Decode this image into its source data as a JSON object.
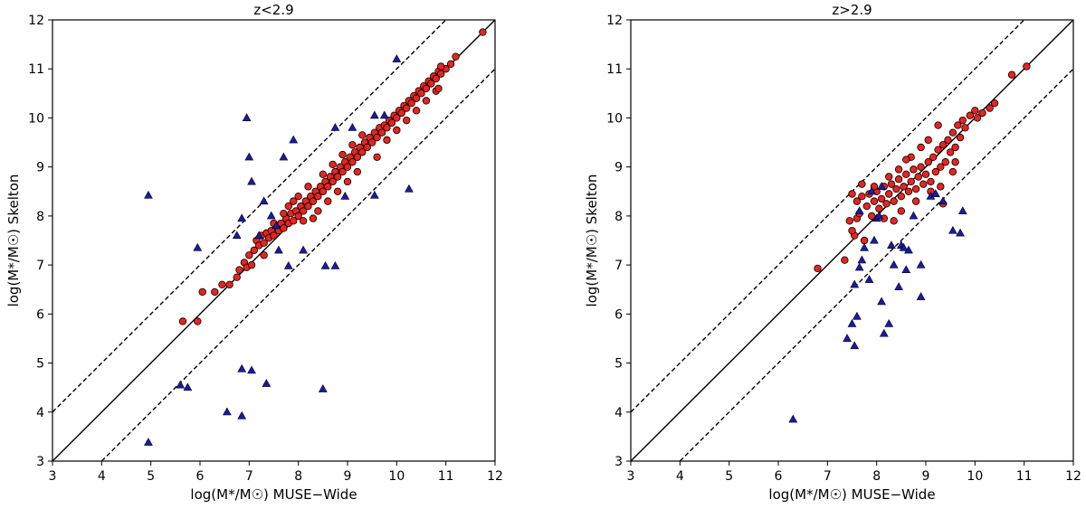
{
  "chart_data": [
    {
      "type": "scatter",
      "title": "z<2.9",
      "xlabel": "log(M*/M☉) MUSE−Wide",
      "ylabel": "log(M*/M☉) Skelton",
      "xlim": [
        3,
        12
      ],
      "ylim": [
        3,
        12
      ],
      "xticks": [
        "3",
        "4",
        "5",
        "6",
        "7",
        "8",
        "9",
        "10",
        "11",
        "12"
      ],
      "yticks": [
        "3",
        "4",
        "5",
        "6",
        "7",
        "8",
        "9",
        "10",
        "11",
        "12"
      ],
      "lines": {
        "one_to_one": true,
        "offset": 1,
        "dashed": true
      },
      "series": [
        {
          "marker": "circle",
          "color": "#e8241f",
          "points": [
            [
              5.65,
              5.85
            ],
            [
              5.95,
              5.85
            ],
            [
              6.05,
              6.45
            ],
            [
              6.3,
              6.45
            ],
            [
              6.45,
              6.6
            ],
            [
              6.6,
              6.6
            ],
            [
              6.75,
              6.75
            ],
            [
              6.8,
              6.9
            ],
            [
              6.9,
              7.05
            ],
            [
              6.95,
              6.95
            ],
            [
              7.0,
              7.2
            ],
            [
              7.05,
              7.0
            ],
            [
              7.1,
              7.3
            ],
            [
              7.15,
              7.5
            ],
            [
              7.2,
              7.4
            ],
            [
              7.25,
              7.6
            ],
            [
              7.3,
              7.45
            ],
            [
              7.35,
              7.65
            ],
            [
              7.4,
              7.55
            ],
            [
              7.45,
              7.7
            ],
            [
              7.5,
              7.6
            ],
            [
              7.55,
              7.8
            ],
            [
              7.6,
              7.7
            ],
            [
              7.65,
              7.85
            ],
            [
              7.7,
              7.75
            ],
            [
              7.75,
              7.95
            ],
            [
              7.8,
              7.85
            ],
            [
              7.85,
              8.05
            ],
            [
              7.9,
              7.9
            ],
            [
              7.95,
              8.1
            ],
            [
              8.0,
              8.0
            ],
            [
              8.05,
              8.2
            ],
            [
              8.1,
              8.1
            ],
            [
              8.15,
              8.3
            ],
            [
              8.2,
              8.2
            ],
            [
              8.25,
              8.4
            ],
            [
              8.3,
              8.3
            ],
            [
              8.35,
              8.5
            ],
            [
              8.4,
              8.4
            ],
            [
              8.45,
              8.6
            ],
            [
              8.5,
              8.5
            ],
            [
              8.55,
              8.7
            ],
            [
              8.6,
              8.6
            ],
            [
              8.65,
              8.8
            ],
            [
              8.7,
              8.7
            ],
            [
              8.75,
              8.9
            ],
            [
              8.8,
              8.8
            ],
            [
              8.85,
              9.0
            ],
            [
              8.9,
              8.9
            ],
            [
              8.95,
              9.1
            ],
            [
              9.0,
              9.0
            ],
            [
              9.05,
              9.2
            ],
            [
              9.1,
              9.1
            ],
            [
              9.15,
              9.3
            ],
            [
              9.2,
              9.2
            ],
            [
              9.25,
              9.4
            ],
            [
              9.3,
              9.3
            ],
            [
              9.35,
              9.5
            ],
            [
              9.4,
              9.4
            ],
            [
              9.45,
              9.6
            ],
            [
              9.5,
              9.5
            ],
            [
              9.55,
              9.7
            ],
            [
              9.6,
              9.6
            ],
            [
              9.65,
              9.8
            ],
            [
              9.7,
              9.7
            ],
            [
              9.75,
              9.85
            ],
            [
              9.8,
              9.8
            ],
            [
              9.85,
              9.95
            ],
            [
              9.9,
              9.9
            ],
            [
              9.95,
              10.05
            ],
            [
              10.0,
              10.0
            ],
            [
              10.05,
              10.15
            ],
            [
              10.1,
              10.1
            ],
            [
              10.15,
              10.25
            ],
            [
              10.2,
              10.2
            ],
            [
              10.25,
              10.35
            ],
            [
              10.3,
              10.3
            ],
            [
              10.35,
              10.45
            ],
            [
              10.4,
              10.4
            ],
            [
              10.45,
              10.55
            ],
            [
              10.5,
              10.5
            ],
            [
              10.55,
              10.65
            ],
            [
              10.6,
              10.6
            ],
            [
              10.65,
              10.75
            ],
            [
              10.7,
              10.7
            ],
            [
              10.75,
              10.85
            ],
            [
              10.8,
              10.8
            ],
            [
              10.85,
              10.95
            ],
            [
              10.9,
              10.9
            ],
            [
              11.0,
              11.0
            ],
            [
              11.1,
              11.1
            ],
            [
              11.2,
              11.25
            ],
            [
              11.75,
              11.75
            ],
            [
              7.8,
              8.2
            ],
            [
              8.0,
              8.4
            ],
            [
              8.2,
              8.6
            ],
            [
              8.4,
              8.1
            ],
            [
              8.6,
              8.3
            ],
            [
              8.8,
              8.5
            ],
            [
              9.0,
              8.7
            ],
            [
              9.2,
              8.9
            ],
            [
              9.6,
              9.2
            ],
            [
              7.9,
              8.3
            ],
            [
              8.1,
              7.9
            ],
            [
              8.3,
              7.95
            ],
            [
              7.7,
              8.05
            ],
            [
              7.5,
              7.85
            ],
            [
              7.3,
              7.2
            ],
            [
              9.8,
              9.55
            ],
            [
              10.2,
              9.95
            ],
            [
              10.4,
              10.15
            ],
            [
              10.6,
              10.35
            ],
            [
              10.8,
              10.55
            ],
            [
              10.0,
              9.75
            ],
            [
              8.9,
              9.25
            ],
            [
              9.1,
              9.45
            ],
            [
              9.3,
              9.65
            ],
            [
              8.7,
              9.05
            ],
            [
              8.5,
              8.85
            ],
            [
              10.9,
              11.05
            ],
            [
              10.85,
              10.6
            ]
          ]
        },
        {
          "marker": "triangle",
          "color": "#1a1aa8",
          "points": [
            [
              4.95,
              3.38
            ],
            [
              4.95,
              8.42
            ],
            [
              5.6,
              4.55
            ],
            [
              5.75,
              4.5
            ],
            [
              5.95,
              7.35
            ],
            [
              6.55,
              4.0
            ],
            [
              6.75,
              7.6
            ],
            [
              6.85,
              4.88
            ],
            [
              6.85,
              3.92
            ],
            [
              6.85,
              7.95
            ],
            [
              6.95,
              10.0
            ],
            [
              7.0,
              9.2
            ],
            [
              7.05,
              4.85
            ],
            [
              7.05,
              8.7
            ],
            [
              7.2,
              7.6
            ],
            [
              7.3,
              8.3
            ],
            [
              7.35,
              4.58
            ],
            [
              7.45,
              8.0
            ],
            [
              7.55,
              7.8
            ],
            [
              7.6,
              7.3
            ],
            [
              7.7,
              9.2
            ],
            [
              7.8,
              6.98
            ],
            [
              7.9,
              9.55
            ],
            [
              8.1,
              7.3
            ],
            [
              8.55,
              6.98
            ],
            [
              8.75,
              6.98
            ],
            [
              8.5,
              4.47
            ],
            [
              8.75,
              9.8
            ],
            [
              8.95,
              8.4
            ],
            [
              9.1,
              9.8
            ],
            [
              9.55,
              8.42
            ],
            [
              10.0,
              11.2
            ],
            [
              10.25,
              8.55
            ],
            [
              9.55,
              10.05
            ],
            [
              9.75,
              10.05
            ]
          ]
        }
      ]
    },
    {
      "type": "scatter",
      "title": "z>2.9",
      "xlabel": "log(M*/M☉) MUSE−Wide",
      "ylabel": "log(M*/M☉) Skelton",
      "xlim": [
        3,
        12
      ],
      "ylim": [
        3,
        12
      ],
      "xticks": [
        "3",
        "4",
        "5",
        "6",
        "7",
        "8",
        "9",
        "10",
        "11",
        "12"
      ],
      "yticks": [
        "3",
        "4",
        "5",
        "6",
        "7",
        "8",
        "9",
        "10",
        "11",
        "12"
      ],
      "lines": {
        "one_to_one": true,
        "offset": 1,
        "dashed": true
      },
      "series": [
        {
          "marker": "circle",
          "color": "#e8241f",
          "points": [
            [
              6.8,
              6.93
            ],
            [
              7.35,
              7.1
            ],
            [
              7.45,
              7.9
            ],
            [
              7.5,
              8.45
            ],
            [
              7.55,
              7.6
            ],
            [
              7.6,
              7.95
            ],
            [
              7.65,
              8.05
            ],
            [
              7.7,
              8.4
            ],
            [
              7.75,
              7.5
            ],
            [
              7.8,
              8.2
            ],
            [
              7.85,
              8.45
            ],
            [
              7.9,
              8.0
            ],
            [
              7.95,
              8.3
            ],
            [
              8.0,
              8.5
            ],
            [
              8.05,
              8.15
            ],
            [
              8.1,
              8.35
            ],
            [
              8.15,
              8.6
            ],
            [
              8.2,
              8.25
            ],
            [
              8.25,
              8.45
            ],
            [
              8.3,
              8.65
            ],
            [
              8.35,
              8.3
            ],
            [
              8.4,
              8.55
            ],
            [
              8.45,
              8.75
            ],
            [
              8.5,
              8.4
            ],
            [
              8.55,
              8.6
            ],
            [
              8.6,
              8.85
            ],
            [
              8.65,
              8.5
            ],
            [
              8.7,
              8.7
            ],
            [
              8.75,
              8.95
            ],
            [
              8.8,
              8.55
            ],
            [
              8.85,
              8.8
            ],
            [
              8.9,
              9.0
            ],
            [
              8.95,
              8.65
            ],
            [
              9.0,
              8.85
            ],
            [
              9.05,
              9.1
            ],
            [
              9.1,
              8.7
            ],
            [
              9.15,
              9.2
            ],
            [
              9.2,
              8.9
            ],
            [
              9.25,
              9.35
            ],
            [
              9.3,
              9.0
            ],
            [
              9.35,
              9.45
            ],
            [
              9.4,
              9.1
            ],
            [
              9.45,
              9.55
            ],
            [
              9.5,
              9.3
            ],
            [
              9.55,
              9.7
            ],
            [
              9.6,
              9.4
            ],
            [
              9.65,
              9.85
            ],
            [
              9.7,
              9.6
            ],
            [
              9.75,
              9.95
            ],
            [
              9.8,
              9.8
            ],
            [
              9.9,
              10.05
            ],
            [
              10.0,
              10.15
            ],
            [
              10.05,
              10.0
            ],
            [
              10.15,
              10.1
            ],
            [
              10.3,
              10.2
            ],
            [
              10.4,
              10.3
            ],
            [
              10.75,
              10.88
            ],
            [
              11.05,
              11.05
            ],
            [
              8.7,
              9.2
            ],
            [
              9.05,
              9.55
            ],
            [
              9.25,
              9.85
            ],
            [
              8.9,
              9.4
            ],
            [
              7.95,
              8.6
            ],
            [
              8.25,
              8.8
            ],
            [
              8.5,
              8.1
            ],
            [
              8.8,
              8.3
            ],
            [
              9.1,
              8.5
            ],
            [
              9.3,
              8.6
            ],
            [
              9.55,
              8.9
            ],
            [
              9.35,
              8.25
            ],
            [
              9.6,
              9.1
            ],
            [
              7.5,
              7.7
            ],
            [
              8.35,
              7.9
            ],
            [
              8.15,
              7.95
            ],
            [
              7.7,
              8.65
            ],
            [
              7.6,
              8.3
            ],
            [
              8.6,
              9.15
            ],
            [
              8.45,
              8.95
            ]
          ]
        },
        {
          "marker": "triangle",
          "color": "#1a1aa8",
          "points": [
            [
              6.3,
              3.85
            ],
            [
              7.4,
              5.5
            ],
            [
              7.5,
              5.8
            ],
            [
              7.55,
              5.35
            ],
            [
              7.6,
              5.95
            ],
            [
              7.55,
              6.6
            ],
            [
              7.65,
              6.95
            ],
            [
              7.65,
              8.1
            ],
            [
              7.7,
              7.1
            ],
            [
              7.75,
              7.35
            ],
            [
              7.85,
              6.7
            ],
            [
              7.9,
              8.5
            ],
            [
              7.95,
              7.5
            ],
            [
              8.0,
              7.95
            ],
            [
              8.05,
              8.0
            ],
            [
              8.1,
              6.25
            ],
            [
              8.15,
              5.6
            ],
            [
              8.25,
              5.8
            ],
            [
              8.3,
              7.4
            ],
            [
              8.35,
              7.0
            ],
            [
              8.45,
              6.55
            ],
            [
              8.5,
              7.4
            ],
            [
              8.55,
              7.35
            ],
            [
              8.6,
              6.9
            ],
            [
              8.65,
              7.3
            ],
            [
              8.75,
              8.0
            ],
            [
              8.9,
              6.35
            ],
            [
              8.9,
              7.0
            ],
            [
              9.1,
              8.4
            ],
            [
              9.35,
              8.3
            ],
            [
              9.55,
              7.7
            ],
            [
              9.7,
              7.65
            ],
            [
              9.75,
              8.1
            ],
            [
              9.2,
              8.45
            ],
            [
              8.1,
              8.6
            ]
          ]
        }
      ]
    }
  ]
}
